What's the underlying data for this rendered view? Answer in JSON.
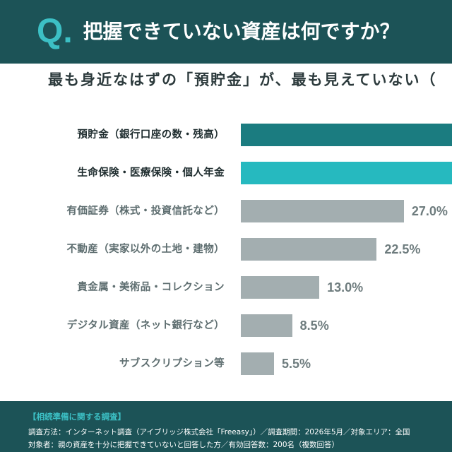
{
  "header": {
    "q_mark": "Q.",
    "title": "把握できていない資産は何ですか？"
  },
  "subtitle": "最も身近なはずの「預貯金」が、最も見えていない（",
  "colors": {
    "header_bg": "#1c5357",
    "accent": "#3cc0c5",
    "label_emphasis": "#1f2d2f",
    "label_normal": "#5e6e70",
    "value_label": "#6e7c7e"
  },
  "chart_data": {
    "type": "bar",
    "orientation": "horizontal",
    "categories": [
      "預貯金（銀行口座の数・残高）",
      "生命保険・医療保険・個人年金",
      "有価証券（株式・投資信託など）",
      "不動産（実家以外の土地・建物）",
      "貴金属・美術品・コレクション",
      "デジタル資産（ネット銀行など）",
      "サブスクリプション等"
    ],
    "values": [
      null,
      null,
      27.0,
      22.5,
      13.0,
      8.5,
      5.5
    ],
    "value_labels": [
      null,
      null,
      "27.0%",
      "22.5%",
      "13.0%",
      "8.5%",
      "5.5%"
    ],
    "unit": "%",
    "bar_colors": [
      "#1b7c80",
      "#26b9bf",
      "#a3aeb0",
      "#a3aeb0",
      "#a3aeb0",
      "#a3aeb0",
      "#a3aeb0"
    ],
    "emphasized": [
      true,
      true,
      false,
      false,
      false,
      false,
      false
    ]
  },
  "footer": {
    "survey_name": "【相続準備に関する調査】",
    "method": "調査方法：インターネット調査（アイブリッジ株式会社「Freeasy」）／調査期間：2026年5月／対象エリア：全国",
    "respondents": "対象者：親の資産を十分に把握できていないと回答した方／有効回答数：200名（複数回答）"
  }
}
